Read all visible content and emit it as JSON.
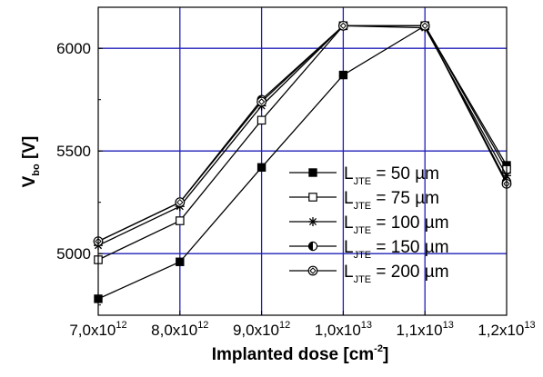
{
  "chart_data": {
    "type": "line",
    "title": "",
    "xlabel": {
      "main": "Implanted dose [cm",
      "sup": "-2",
      "tail": "]"
    },
    "ylabel": {
      "main": "V",
      "sub": "bo",
      "tail": " [V]"
    },
    "x_ticks": [
      {
        "mantissa": "7,0x10",
        "exp": "12"
      },
      {
        "mantissa": "8,0x10",
        "exp": "12"
      },
      {
        "mantissa": "9,0x10",
        "exp": "12"
      },
      {
        "mantissa": "1,0x10",
        "exp": "13"
      },
      {
        "mantissa": "1,1x10",
        "exp": "13"
      },
      {
        "mantissa": "1,2x10",
        "exp": "13"
      }
    ],
    "x": [
      7000000000000.0,
      8000000000000.0,
      9000000000000.0,
      10000000000000.0,
      11000000000000.0,
      12000000000000.0
    ],
    "xlim": [
      7000000000000.0,
      12000000000000.0
    ],
    "ylim": [
      4700,
      6200
    ],
    "y_ticks": [
      "5000",
      "5500",
      "6000"
    ],
    "grid": true,
    "grid_color": "#1f1fb8",
    "legend_position": "inside-right",
    "series": [
      {
        "name_main": "L",
        "name_sub": "JTE",
        "name_tail": " =   50 µm",
        "marker": "filled-square",
        "values": [
          4780,
          4960,
          5420,
          5870,
          6110,
          5430
        ]
      },
      {
        "name_main": "L",
        "name_sub": "JTE",
        "name_tail": " =   75 µm",
        "marker": "open-square",
        "values": [
          4970,
          5160,
          5650,
          6110,
          6110,
          5410
        ]
      },
      {
        "name_main": "L",
        "name_sub": "JTE",
        "name_tail": " = 100 µm",
        "marker": "star",
        "values": [
          5040,
          5230,
          5720,
          6110,
          6100,
          5380
        ]
      },
      {
        "name_main": "L",
        "name_sub": "JTE",
        "name_tail": " = 150 µm",
        "marker": "half-circle",
        "values": [
          5060,
          5250,
          5750,
          6110,
          6110,
          5350
        ]
      },
      {
        "name_main": "L",
        "name_sub": "JTE",
        "name_tail": " = 200 µm",
        "marker": "open-diamond",
        "values": [
          5060,
          5250,
          5740,
          6110,
          6110,
          5340
        ]
      }
    ]
  }
}
